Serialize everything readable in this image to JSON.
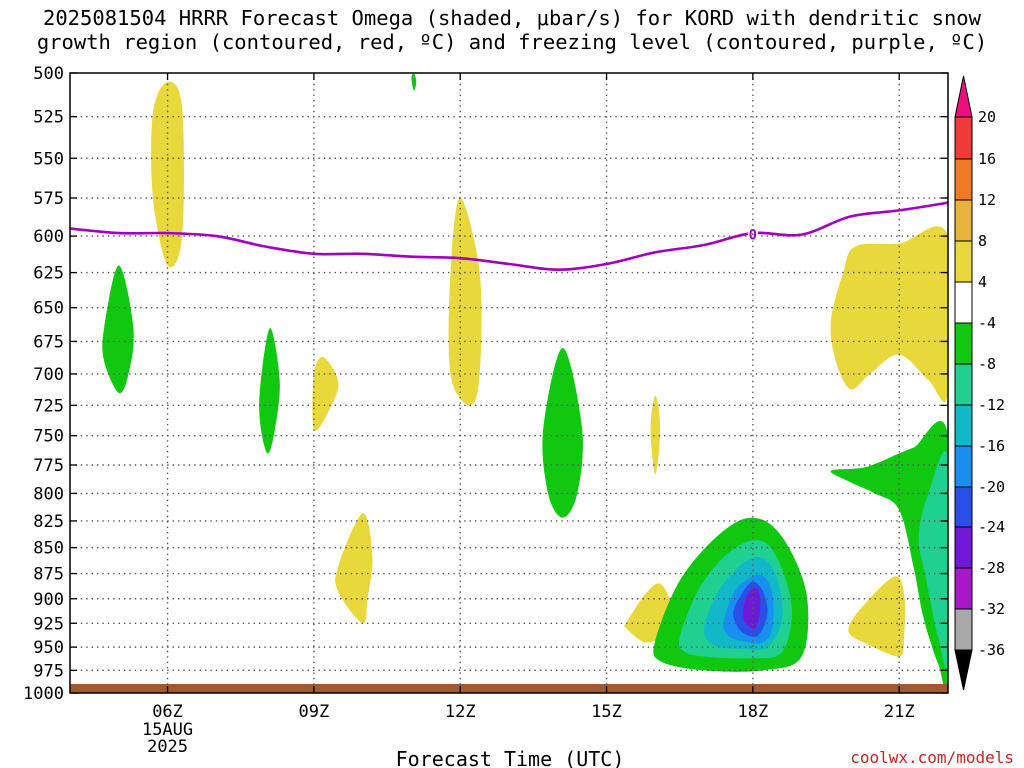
{
  "title": {
    "line1": "2025081504 HRRR Forecast Omega (shaded, μbar/s) for KORD with dendritic snow",
    "line2": "growth region (contoured, red, ºC) and freezing level (contoured, purple, ºC)"
  },
  "credit": "coolwx.com/models",
  "chart_data": {
    "type": "heatmap",
    "xlabel": "Forecast Time (UTC)",
    "ylabel": "",
    "x_ticks": [
      {
        "hour": 6,
        "label": "06Z",
        "sub": [
          "15AUG",
          "2025"
        ]
      },
      {
        "hour": 9,
        "label": "09Z"
      },
      {
        "hour": 12,
        "label": "12Z"
      },
      {
        "hour": 15,
        "label": "15Z"
      },
      {
        "hour": 18,
        "label": "18Z"
      },
      {
        "hour": 21,
        "label": "21Z"
      }
    ],
    "xlim": [
      4,
      22
    ],
    "ylim": [
      500,
      1000
    ],
    "y_scale": "log",
    "y_ticks": [
      500,
      525,
      550,
      575,
      600,
      625,
      650,
      675,
      700,
      725,
      750,
      775,
      800,
      825,
      850,
      875,
      900,
      925,
      950,
      975,
      1000
    ],
    "grid": true,
    "colorbar": {
      "labels": [
        "20",
        "16",
        "12",
        "8",
        "4",
        "-4",
        "-8",
        "-12",
        "-16",
        "-20",
        "-24",
        "-28",
        "-32",
        "-36"
      ],
      "colors": [
        "#ec0f7c",
        "#f03a3a",
        "#f07a24",
        "#e8b43a",
        "#e8d83c",
        "#ffffff",
        "#10c810",
        "#20d090",
        "#10b8c8",
        "#1890f0",
        "#2850e8",
        "#7018d8",
        "#a818c8",
        "#a8a8a8",
        "#000000"
      ]
    },
    "freezing_level": {
      "color": "#a000c0",
      "label": "0",
      "label_at": {
        "hour": 18,
        "p": 599
      },
      "points": [
        [
          4,
          595
        ],
        [
          5,
          598
        ],
        [
          6,
          598
        ],
        [
          7,
          600
        ],
        [
          8,
          607
        ],
        [
          9,
          612
        ],
        [
          10,
          612
        ],
        [
          11,
          614
        ],
        [
          12,
          615
        ],
        [
          13,
          619
        ],
        [
          14,
          623
        ],
        [
          15,
          619
        ],
        [
          16,
          611
        ],
        [
          17,
          606
        ],
        [
          18,
          598
        ],
        [
          19,
          599
        ],
        [
          20,
          587
        ],
        [
          21,
          583
        ],
        [
          22,
          578
        ]
      ]
    },
    "omega_areas": [
      {
        "level": 8,
        "points": [
          [
            5.7,
            523
          ],
          [
            6.0,
            505
          ],
          [
            6.3,
            520
          ],
          [
            6.3,
            600
          ],
          [
            6.0,
            620
          ],
          [
            5.7,
            575
          ]
        ]
      },
      {
        "level": -8,
        "points": [
          [
            4.7,
            665
          ],
          [
            5.0,
            620
          ],
          [
            5.3,
            665
          ],
          [
            5.2,
            700
          ],
          [
            5.0,
            715
          ],
          [
            4.7,
            690
          ]
        ]
      },
      {
        "level": -8,
        "points": [
          [
            7.9,
            710
          ],
          [
            8.1,
            665
          ],
          [
            8.3,
            705
          ],
          [
            8.2,
            745
          ],
          [
            8.05,
            765
          ],
          [
            7.9,
            740
          ]
        ]
      },
      {
        "level": 8,
        "points": [
          [
            9.0,
            700
          ],
          [
            9.2,
            687
          ],
          [
            9.5,
            707
          ],
          [
            9.3,
            730
          ],
          [
            9.0,
            745
          ]
        ]
      },
      {
        "level": 8,
        "points": [
          [
            9.5,
            868
          ],
          [
            10.0,
            818
          ],
          [
            10.2,
            858
          ],
          [
            10.1,
            900
          ],
          [
            10.0,
            925
          ],
          [
            9.5,
            893
          ]
        ]
      },
      {
        "level": 8,
        "points": [
          [
            11.8,
            625
          ],
          [
            12.0,
            575
          ],
          [
            12.4,
            625
          ],
          [
            12.4,
            700
          ],
          [
            12.2,
            725
          ],
          [
            11.8,
            700
          ]
        ]
      },
      {
        "level": -8,
        "points": [
          [
            11.0,
            503
          ],
          [
            11.05,
            500
          ],
          [
            11.1,
            505
          ],
          [
            11.05,
            510
          ]
        ]
      },
      {
        "level": -8,
        "points": [
          [
            13.7,
            745
          ],
          [
            14.1,
            680
          ],
          [
            14.5,
            745
          ],
          [
            14.4,
            800
          ],
          [
            14.1,
            822
          ],
          [
            13.8,
            800
          ]
        ]
      },
      {
        "level": 8,
        "points": [
          [
            15.9,
            745
          ],
          [
            16.0,
            717
          ],
          [
            16.1,
            745
          ],
          [
            16.0,
            783
          ]
        ]
      },
      {
        "level": 8,
        "points": [
          [
            15.4,
            925
          ],
          [
            15.8,
            895
          ],
          [
            16.1,
            885
          ],
          [
            16.3,
            905
          ],
          [
            16.2,
            935
          ],
          [
            15.8,
            945
          ],
          [
            15.4,
            930
          ]
        ]
      },
      {
        "level": -8,
        "points": [
          [
            16.0,
            943
          ],
          [
            16.5,
            882
          ],
          [
            17.3,
            838
          ],
          [
            18.0,
            822
          ],
          [
            18.6,
            840
          ],
          [
            19.1,
            895
          ],
          [
            19.0,
            960
          ],
          [
            18.2,
            975
          ],
          [
            17.0,
            975
          ],
          [
            16.1,
            965
          ]
        ]
      },
      {
        "level": -12,
        "points": [
          [
            16.5,
            940
          ],
          [
            16.9,
            890
          ],
          [
            17.5,
            855
          ],
          [
            18.1,
            843
          ],
          [
            18.5,
            860
          ],
          [
            18.8,
            910
          ],
          [
            18.6,
            955
          ],
          [
            18.0,
            962
          ],
          [
            17.0,
            960
          ],
          [
            16.6,
            955
          ]
        ]
      },
      {
        "level": -16,
        "points": [
          [
            17.0,
            930
          ],
          [
            17.3,
            892
          ],
          [
            17.8,
            865
          ],
          [
            18.2,
            860
          ],
          [
            18.5,
            880
          ],
          [
            18.6,
            920
          ],
          [
            18.3,
            950
          ],
          [
            17.8,
            952
          ],
          [
            17.2,
            948
          ]
        ]
      },
      {
        "level": -20,
        "points": [
          [
            17.4,
            925
          ],
          [
            17.6,
            895
          ],
          [
            17.9,
            880
          ],
          [
            18.2,
            877
          ],
          [
            18.4,
            895
          ],
          [
            18.4,
            930
          ],
          [
            18.2,
            945
          ],
          [
            17.8,
            944
          ],
          [
            17.5,
            938
          ]
        ]
      },
      {
        "level": -24,
        "points": [
          [
            17.6,
            912
          ],
          [
            17.8,
            893
          ],
          [
            18.0,
            883
          ],
          [
            18.2,
            892
          ],
          [
            18.3,
            915
          ],
          [
            18.1,
            938
          ],
          [
            17.8,
            935
          ],
          [
            17.65,
            925
          ]
        ]
      },
      {
        "level": -28,
        "points": [
          [
            17.8,
            912
          ],
          [
            17.9,
            895
          ],
          [
            18.1,
            890
          ],
          [
            18.15,
            910
          ],
          [
            18.05,
            930
          ],
          [
            17.85,
            925
          ]
        ]
      },
      {
        "level": 8,
        "points": [
          [
            20.0,
            925
          ],
          [
            20.3,
            905
          ],
          [
            20.9,
            878
          ],
          [
            21.1,
            895
          ],
          [
            21.1,
            940
          ],
          [
            21.0,
            960
          ],
          [
            20.4,
            948
          ],
          [
            20.0,
            937
          ]
        ]
      },
      {
        "level": -8,
        "points": [
          [
            19.6,
            780
          ],
          [
            20.3,
            777
          ],
          [
            21.0,
            765
          ],
          [
            21.3,
            760
          ],
          [
            22.0,
            750
          ],
          [
            22.0,
            980
          ],
          [
            21.8,
            968
          ],
          [
            21.5,
            920
          ],
          [
            21.3,
            870
          ],
          [
            21.0,
            815
          ],
          [
            20.5,
            800
          ],
          [
            20.0,
            790
          ]
        ]
      },
      {
        "level": -12,
        "points": [
          [
            21.4,
            840
          ],
          [
            21.6,
            800
          ],
          [
            22.0,
            770
          ],
          [
            22.0,
            960
          ],
          [
            21.8,
            940
          ],
          [
            21.55,
            880
          ]
        ]
      },
      {
        "level": 8,
        "points": [
          [
            19.6,
            660
          ],
          [
            19.85,
            625
          ],
          [
            20.1,
            607
          ],
          [
            21.0,
            605
          ],
          [
            22.0,
            600
          ],
          [
            22.0,
            715
          ],
          [
            21.6,
            705
          ],
          [
            21.0,
            685
          ],
          [
            20.4,
            700
          ],
          [
            20.0,
            712
          ],
          [
            19.7,
            690
          ]
        ]
      }
    ],
    "surface_bar": {
      "color": "#a05a2c",
      "top_p": 990,
      "bottom_p": 1000
    }
  }
}
